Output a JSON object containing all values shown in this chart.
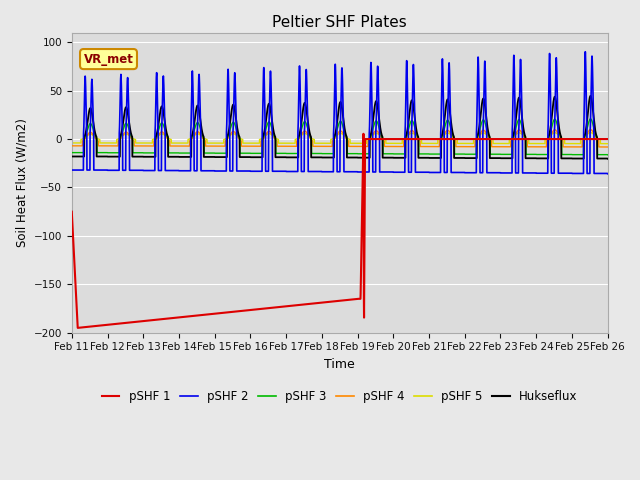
{
  "title": "Peltier SHF Plates",
  "xlabel": "Time",
  "ylabel": "Soil Heat Flux (W/m2)",
  "ylim": [
    -200,
    110
  ],
  "xlim": [
    0,
    360
  ],
  "bg_color": "#e8e8e8",
  "plot_bg_color": "#dcdcdc",
  "annotation_text": "VR_met",
  "annotation_text_color": "#8b0000",
  "annotation_bg": "#ffff99",
  "annotation_border": "#cc8800",
  "xtick_labels": [
    "Feb 11",
    "Feb 12",
    "Feb 13",
    "Feb 14",
    "Feb 15",
    "Feb 16",
    "Feb 17",
    "Feb 18",
    "Feb 19",
    "Feb 20",
    "Feb 21",
    "Feb 22",
    "Feb 23",
    "Feb 24",
    "Feb 25",
    "Feb 26"
  ],
  "series_colors": {
    "pSHF 1": "#dd0000",
    "pSHF 2": "#0000ee",
    "pSHF 3": "#00bb00",
    "pSHF 4": "#ff8800",
    "pSHF 5": "#dddd00",
    "Hukseflux": "#000000"
  }
}
